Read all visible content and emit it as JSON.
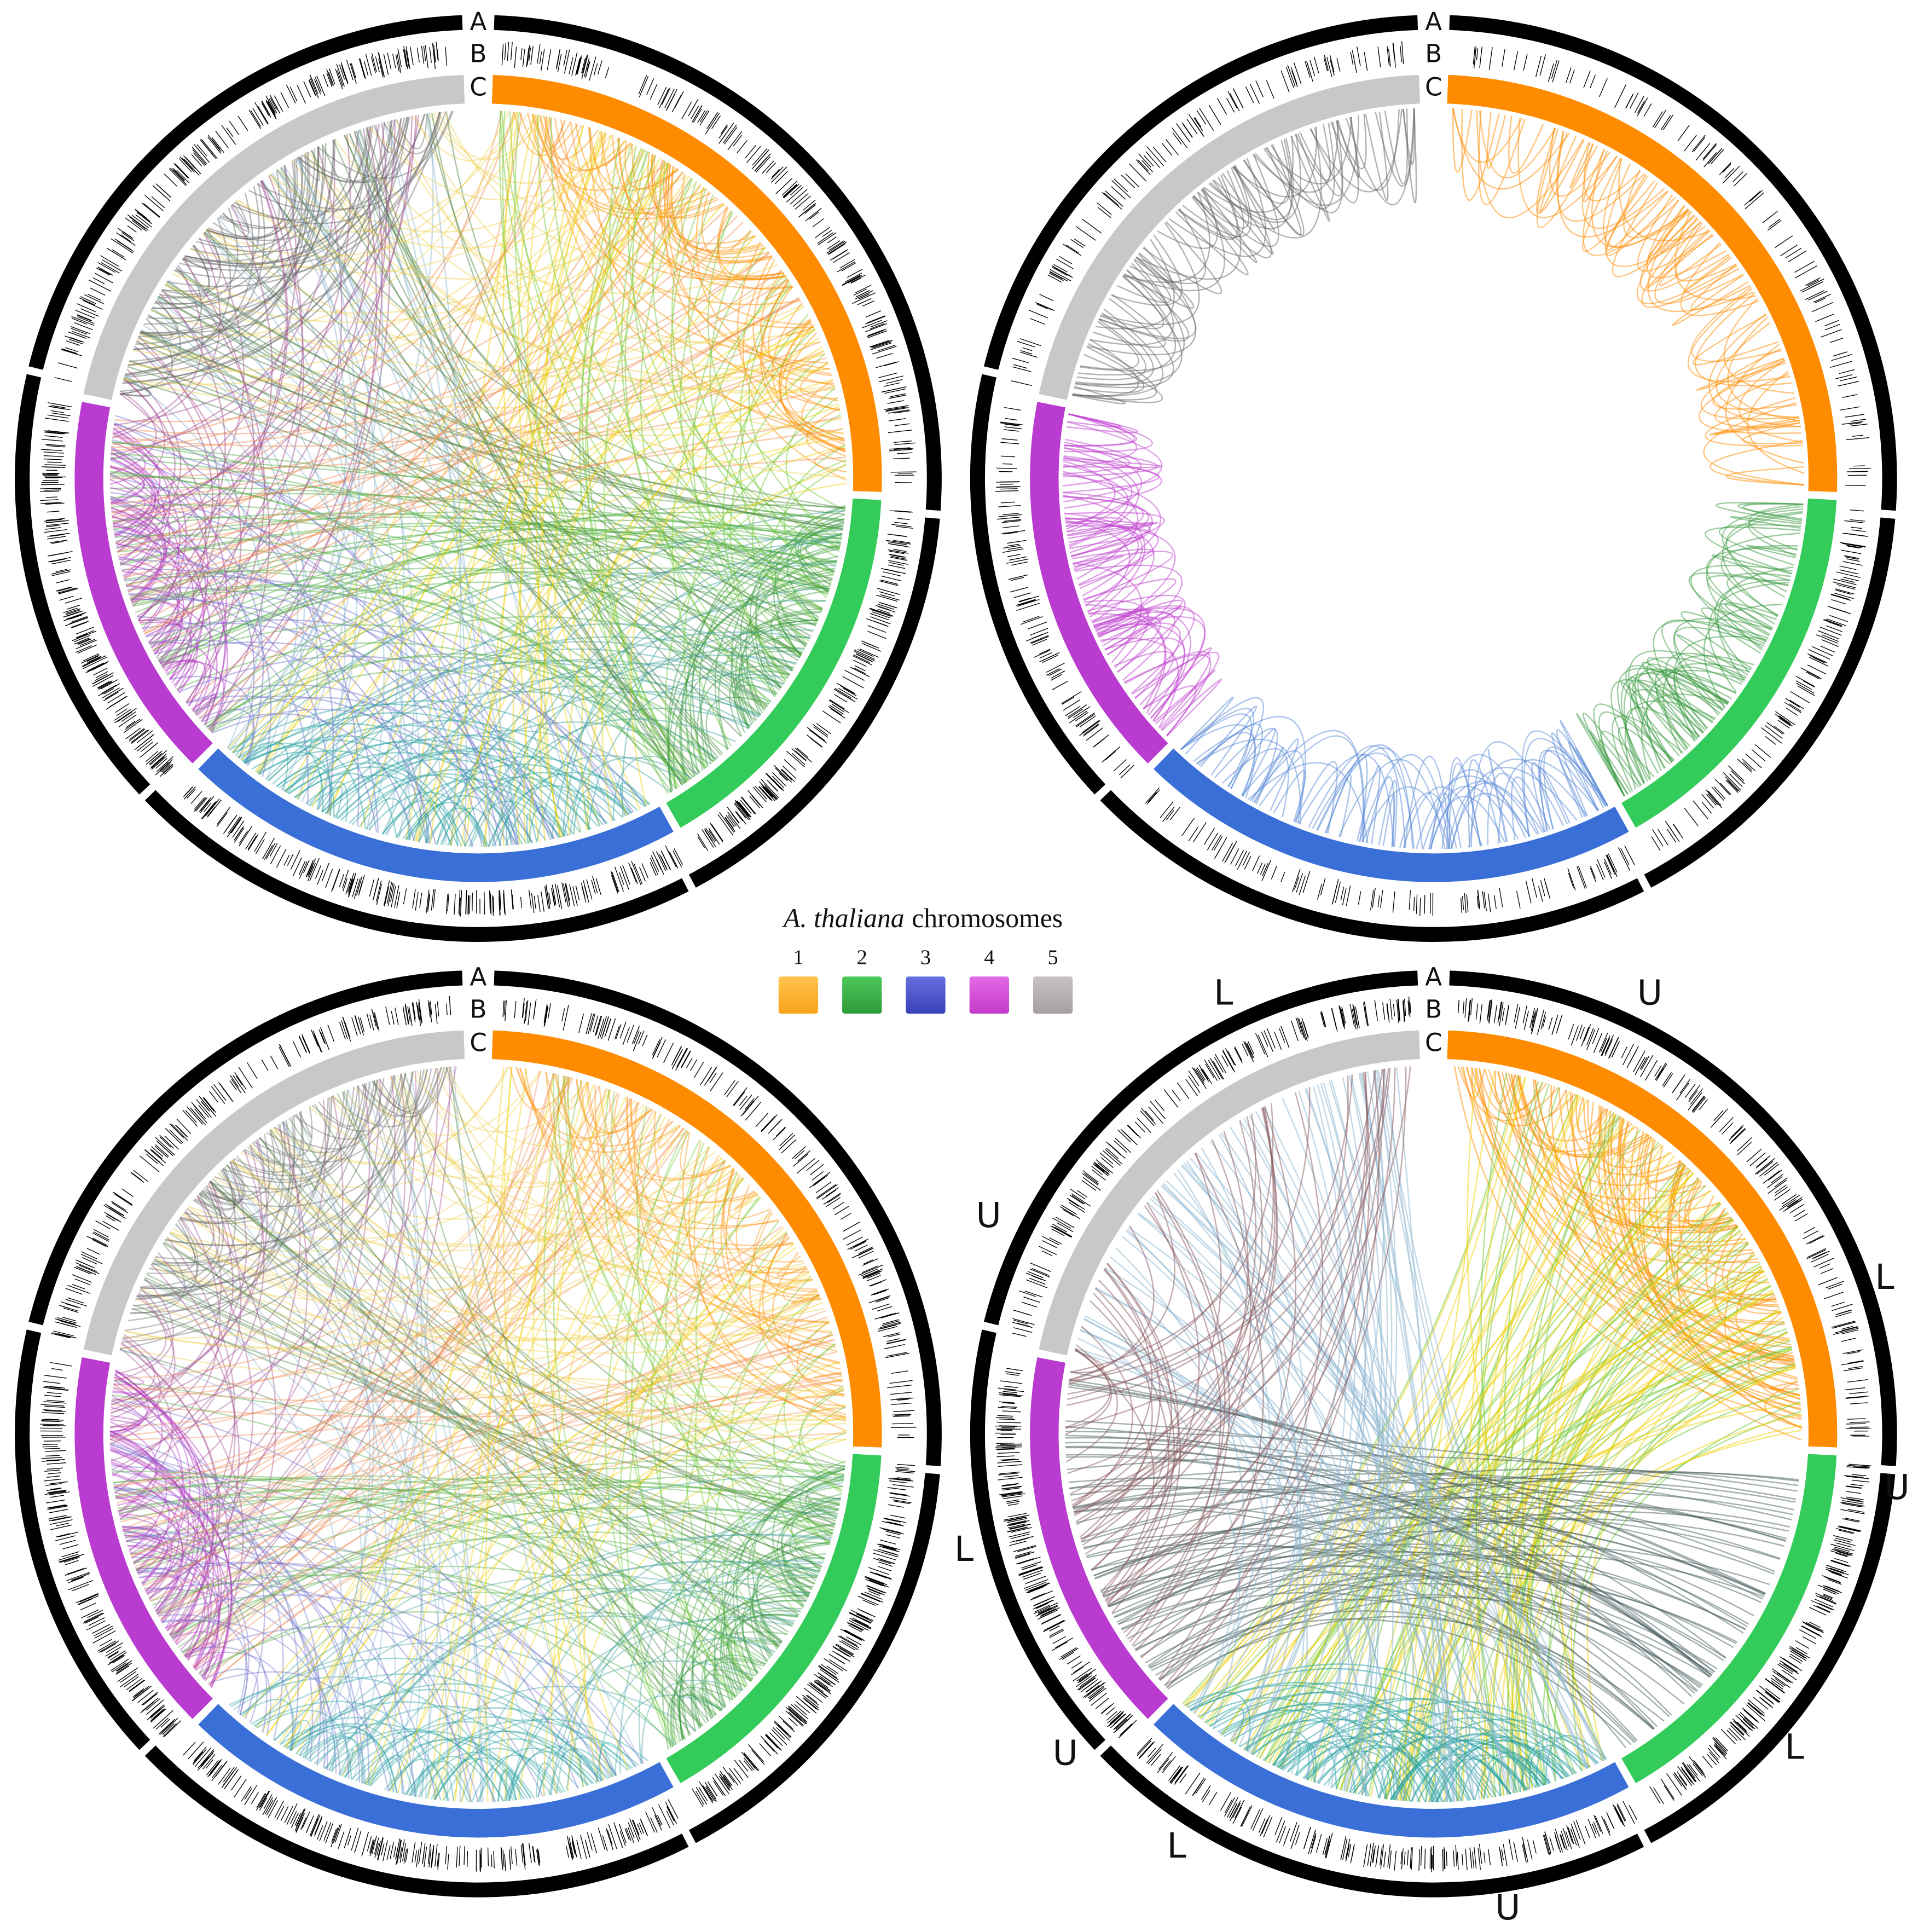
{
  "legend": {
    "title_italic": "A. thaliana",
    "title": "chromosomes",
    "items": [
      "1",
      "2",
      "3",
      "4",
      "5"
    ]
  },
  "panels": [
    {
      "ring_labels": [
        "A",
        "B",
        "C"
      ]
    },
    {
      "ring_labels": [
        "A",
        "B",
        "C"
      ]
    },
    {
      "ring_labels": [
        "A",
        "B",
        "C"
      ]
    },
    {
      "ring_labels": [
        "A",
        "B",
        "C"
      ],
      "region_labels": [
        "L",
        "U",
        "U",
        "L",
        "L",
        "U",
        "U",
        "L",
        "L",
        "U"
      ]
    }
  ]
}
